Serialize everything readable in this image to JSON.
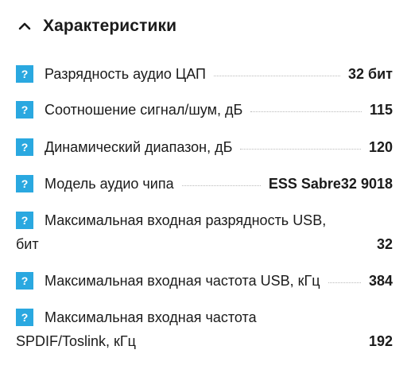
{
  "section": {
    "title": "Характеристики",
    "toggle_icon": "chevron-up-icon"
  },
  "specs": [
    {
      "label": "Разрядность аудио ЦАП",
      "value": "32 бит"
    },
    {
      "label": "Соотношение сигнал/шум, дБ",
      "value": "115"
    },
    {
      "label": "Динамический диапазон, дБ",
      "value": "120"
    },
    {
      "label": "Модель аудио чипа",
      "value": "ESS Sabre32 9018"
    },
    {
      "label_line1": "Максимальная входная разрядность USB,",
      "label_line2": "бит",
      "value": "32"
    },
    {
      "label": "Максимальная входная частота USB, кГц",
      "value": "384"
    },
    {
      "label_line1": "Максимальная входная частота",
      "label_line2": "SPDIF/Toslink, кГц",
      "value": "192"
    }
  ],
  "help_icon": {
    "glyph": "?",
    "color": "#2aa8e0"
  }
}
